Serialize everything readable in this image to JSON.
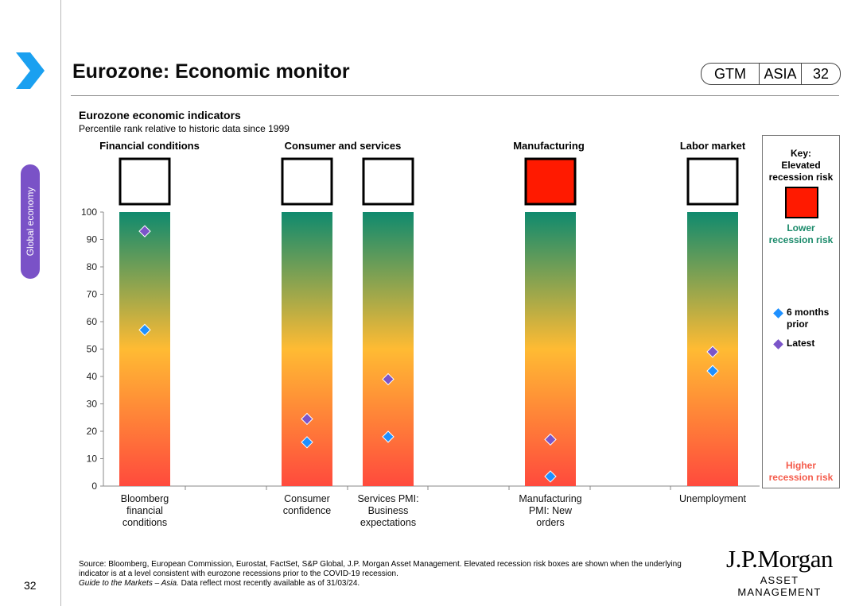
{
  "page": {
    "number": "32",
    "side_tab": "Global economy"
  },
  "header": {
    "title": "Eurozone: Economic monitor",
    "tags": [
      "GTM",
      "ASIA",
      "32"
    ]
  },
  "chart_data": {
    "type": "scatter",
    "title": "Eurozone economic indicators",
    "subtitle": "Percentile rank relative to historic data since 1999",
    "ylim": [
      0,
      100
    ],
    "yticks": [
      0,
      10,
      20,
      30,
      40,
      50,
      60,
      70,
      80,
      90,
      100
    ],
    "groups": [
      {
        "label": "Financial conditions"
      },
      {
        "label": "Consumer and services"
      },
      {
        "label": "Manufacturing"
      },
      {
        "label": "Labor market"
      }
    ],
    "indicators": [
      {
        "label": [
          "Bloomberg",
          "financial",
          "conditions"
        ],
        "group": 0,
        "elevated_risk": false,
        "six_months_prior": 57,
        "latest": 93
      },
      {
        "label": [
          "Consumer",
          "confidence"
        ],
        "group": 1,
        "elevated_risk": false,
        "six_months_prior": 16,
        "latest": 24.5
      },
      {
        "label": [
          "Services PMI:",
          "Business",
          "expectations"
        ],
        "group": 1,
        "elevated_risk": false,
        "six_months_prior": 18,
        "latest": 39
      },
      {
        "label": [
          "Manufacturing",
          "PMI: New",
          "orders"
        ],
        "group": 2,
        "elevated_risk": true,
        "six_months_prior": 3.5,
        "latest": 17
      },
      {
        "label": [
          "Unemployment"
        ],
        "group": 3,
        "elevated_risk": false,
        "six_months_prior": 42,
        "latest": 49
      }
    ],
    "series": [
      {
        "name": "6 months prior",
        "color": "#1e90ff"
      },
      {
        "name": "Latest",
        "color": "#7b55c9"
      }
    ],
    "gradient": {
      "top": "#0f8a6e",
      "middle": "#ffbb33",
      "bottom": "#ff4a3d"
    },
    "risk_box_color": "#ff1a00"
  },
  "key": {
    "title": [
      "Key:",
      "Elevated",
      "recession risk"
    ],
    "lower": [
      "Lower",
      "recession risk"
    ],
    "higher": [
      "Higher",
      "recession risk"
    ],
    "legend": [
      {
        "label": [
          "6 months",
          "prior"
        ],
        "color": "#1e90ff"
      },
      {
        "label": [
          "Latest"
        ],
        "color": "#7b55c9"
      }
    ]
  },
  "footer": {
    "source": "Source: Bloomberg, European Commission, Eurostat, FactSet, S&P Global, J.P. Morgan Asset Management. Elevated recession risk boxes are shown when the underlying indicator is at a level consistent with eurozone recessions prior to the COVID-19 recession.",
    "guide": "Guide to the Markets – Asia.",
    "note": "Data reflect most recently available as of 31/03/24.",
    "logo_text": "J.P.Morgan",
    "logo_sub": "ASSET MANAGEMENT"
  }
}
